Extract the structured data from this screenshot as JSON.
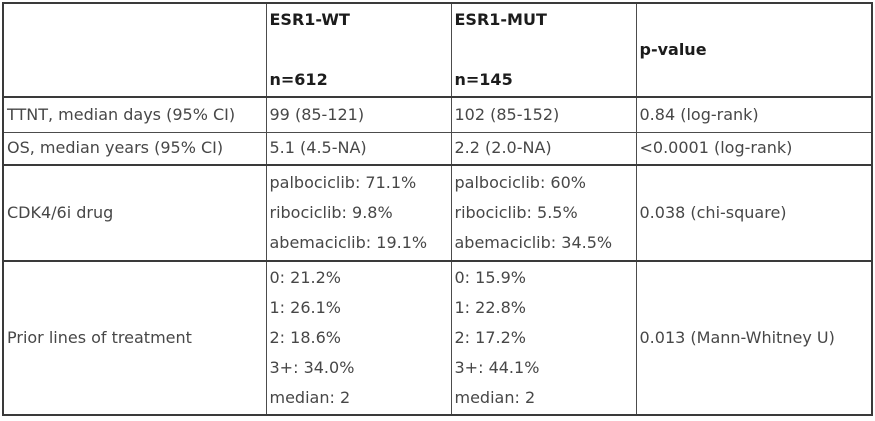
{
  "chart_data": {
    "type": "table",
    "columns": [
      {
        "id": "label",
        "header_lines": [
          "",
          ""
        ]
      },
      {
        "id": "esr1_wt",
        "header_lines": [
          "ESR1-WT",
          "n=612"
        ]
      },
      {
        "id": "esr1_mut",
        "header_lines": [
          "ESR1-MUT",
          "n=145"
        ]
      },
      {
        "id": "p_value",
        "header_lines": [
          "p-value"
        ]
      }
    ],
    "rows": [
      {
        "label": "TTNT, median days (95% CI)",
        "esr1_wt": [
          "99 (85-121)"
        ],
        "esr1_mut": [
          "102 (85-152)"
        ],
        "p_value": "0.84 (log-rank)"
      },
      {
        "label": "OS, median years (95% CI)",
        "esr1_wt": [
          "5.1 (4.5-NA)"
        ],
        "esr1_mut": [
          "2.2 (2.0-NA)"
        ],
        "p_value": "<0.0001 (log-rank)"
      },
      {
        "label": "CDK4/6i drug",
        "esr1_wt": [
          "palbociclib: 71.1%",
          "ribociclib: 9.8%",
          "abemaciclib: 19.1%"
        ],
        "esr1_mut": [
          "palbociclib: 60%",
          "ribociclib: 5.5%",
          "abemaciclib: 34.5%"
        ],
        "p_value": "0.038 (chi-square)"
      },
      {
        "label": "Prior lines of treatment",
        "esr1_wt": [
          "0: 21.2%",
          "1: 26.1%",
          "2: 18.6%",
          "3+: 34.0%",
          "median: 2"
        ],
        "esr1_mut": [
          "0: 15.9%",
          "1: 22.8%",
          "2: 17.2%",
          "3+: 44.1%",
          "median: 2"
        ],
        "p_value": "0.013 (Mann-Whitney U)"
      }
    ]
  },
  "colors": {
    "header_text": "#1c1c1c",
    "body_text": "#474747",
    "border": "#4c4c4c",
    "border_strong": "#3a3a3a",
    "background": "#ffffff"
  }
}
